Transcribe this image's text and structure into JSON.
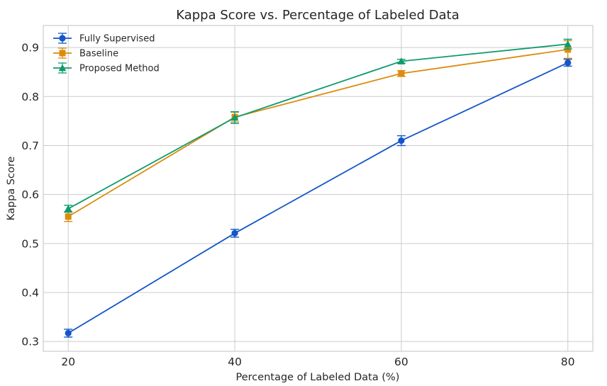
{
  "chart_data": {
    "type": "line",
    "title": "Kappa Score vs. Percentage of Labeled Data",
    "xlabel": "Percentage of Labeled Data (%)",
    "ylabel": "Kappa Score",
    "x": [
      20,
      40,
      60,
      80
    ],
    "xlim": [
      17,
      83
    ],
    "ylim": [
      0.28,
      0.945
    ],
    "xticks": [
      20,
      40,
      60,
      80
    ],
    "yticks": [
      0.3,
      0.4,
      0.5,
      0.6,
      0.7,
      0.8,
      0.9
    ],
    "ytick_labels": [
      "0.3",
      "0.4",
      "0.5",
      "0.6",
      "0.7",
      "0.8",
      "0.9"
    ],
    "grid": true,
    "legend_position": "top-left",
    "series": [
      {
        "name": "Fully Supervised",
        "color": "#1456c8",
        "marker": "circle",
        "values": [
          0.317,
          0.521,
          0.71,
          0.869
        ],
        "errors": [
          0.008,
          0.008,
          0.01,
          0.007
        ]
      },
      {
        "name": "Baseline",
        "color": "#dc8c0c",
        "marker": "square",
        "values": [
          0.555,
          0.758,
          0.847,
          0.896
        ],
        "errors": [
          0.01,
          0.01,
          0.006,
          0.018
        ]
      },
      {
        "name": "Proposed Method",
        "color": "#0e9b6e",
        "marker": "triangle",
        "values": [
          0.571,
          0.757,
          0.872,
          0.907
        ],
        "errors": [
          0.007,
          0.012,
          0.004,
          0.01
        ]
      }
    ]
  }
}
